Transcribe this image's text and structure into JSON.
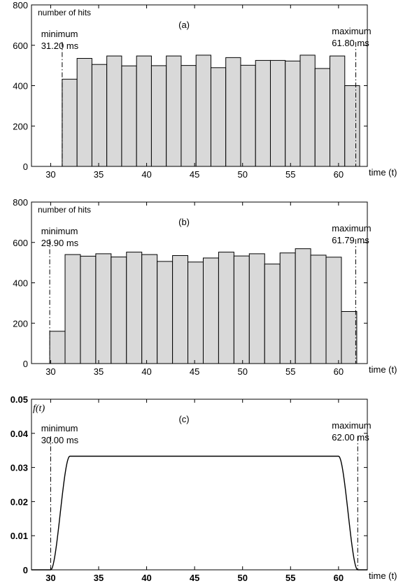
{
  "chart_data": [
    {
      "type": "bar",
      "panel_label": "(a)",
      "ylabel": "number of hits",
      "xlabel": "time (t)",
      "xlim": [
        28,
        63
      ],
      "ylim": [
        0,
        800
      ],
      "xticks": [
        30,
        35,
        40,
        45,
        50,
        55,
        60
      ],
      "yticks": [
        0,
        200,
        400,
        600,
        800
      ],
      "bin_edges": [
        31.2,
        32.75,
        34.3,
        35.85,
        37.4,
        38.95,
        40.5,
        42.05,
        43.6,
        45.15,
        46.7,
        48.25,
        49.8,
        51.35,
        52.9,
        54.45,
        56.0,
        57.55,
        59.1,
        60.65,
        62.2
      ],
      "values": [
        432,
        535,
        505,
        547,
        498,
        547,
        499,
        547,
        500,
        551,
        489,
        539,
        501,
        525,
        525,
        522,
        551,
        485,
        547,
        400
      ],
      "min_label": [
        "minimum",
        "31.20 ms"
      ],
      "max_label": [
        "maximum",
        "61.80 ms"
      ],
      "min_x": 31.2,
      "max x": 61.8
    },
    {
      "type": "bar",
      "panel_label": "(b)",
      "ylabel": "number of hits",
      "xlabel": "time (t)",
      "xlim": [
        28,
        63
      ],
      "ylim": [
        0,
        800
      ],
      "xticks": [
        30,
        35,
        40,
        45,
        50,
        55,
        60
      ],
      "yticks": [
        0,
        200,
        400,
        600,
        800
      ],
      "bin_edges": [
        29.9,
        31.5,
        33.1,
        34.7,
        36.3,
        37.9,
        39.5,
        41.1,
        42.7,
        44.3,
        45.9,
        47.5,
        49.1,
        50.7,
        52.3,
        53.9,
        55.5,
        57.1,
        58.7,
        60.3,
        61.9
      ],
      "values": [
        160,
        540,
        532,
        544,
        528,
        552,
        540,
        506,
        535,
        503,
        523,
        552,
        533,
        544,
        493,
        548,
        569,
        537,
        527,
        258
      ],
      "min_label": [
        "minimum",
        "29.90 ms"
      ],
      "max_label": [
        "maximum",
        "61.79 ms"
      ],
      "min_x": 29.9,
      "max_x": 61.79
    },
    {
      "type": "line",
      "panel_label": "(c)",
      "ylabel": "f(t)",
      "xlabel": "time (t)",
      "xlim": [
        28,
        63
      ],
      "ylim": [
        0,
        0.05
      ],
      "xticks": [
        30,
        35,
        40,
        45,
        50,
        55,
        60
      ],
      "yticks": [
        0,
        0.01,
        0.02,
        0.03,
        0.04,
        0.05
      ],
      "ytick_labels": [
        "0",
        "0.01",
        "0.02",
        "0.03",
        "0.04",
        "0.05"
      ],
      "plateau": 0.0333,
      "rise": [
        30.0,
        32.0
      ],
      "fall": [
        60.0,
        62.0
      ],
      "min_label": [
        "minimum",
        "30.00 ms"
      ],
      "max_label": [
        "maximum",
        "62.00 ms"
      ],
      "min_x": 30.0,
      "max_x": 62.0
    }
  ]
}
